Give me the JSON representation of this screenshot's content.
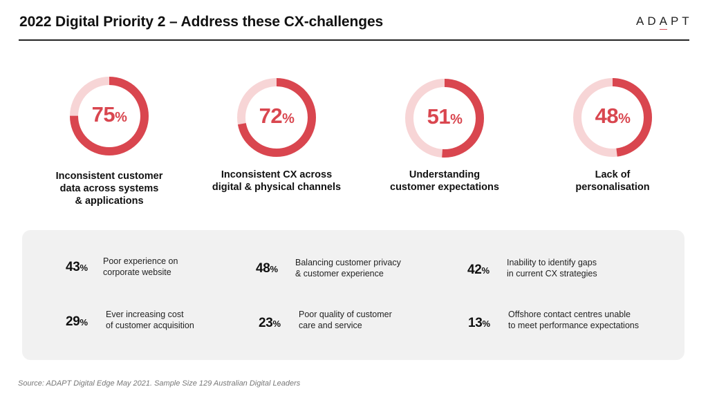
{
  "header": {
    "title": "2022 Digital Priority 2 – Address these CX-challenges",
    "logo": {
      "prefix": "AD",
      "accent": "A",
      "suffix": "PT"
    }
  },
  "colors": {
    "accent": "#d9464f",
    "ring_track": "#f7d5d6",
    "panel_bg": "#f1f1f1",
    "text": "#111111"
  },
  "chart_data": {
    "type": "pie",
    "subtype": "donut-progress",
    "title": "2022 Digital Priority 2 – Address these CX-challenges",
    "unit": "%",
    "categories": [
      "Inconsistent customer data across systems & applications",
      "Inconsistent CX across digital & physical channels",
      "Understanding customer expectations",
      "Lack of personalisation"
    ],
    "values": [
      75,
      72,
      51,
      48
    ],
    "secondary": {
      "type": "table",
      "categories": [
        "Poor experience on corporate website",
        "Balancing customer privacy & customer experience",
        "Inability to identify gaps in current CX strategies",
        "Ever increasing cost of customer acquisition",
        "Poor quality of customer care and service",
        "Offshore contact centres unable to meet performance expectations"
      ],
      "values": [
        43,
        48,
        42,
        29,
        23,
        13
      ]
    }
  },
  "rings": [
    {
      "value": 75,
      "number": "75",
      "pct": "%",
      "label_lines": [
        "Inconsistent customer",
        "data across systems",
        "& applications"
      ]
    },
    {
      "value": 72,
      "number": "72",
      "pct": "%",
      "label_lines": [
        "Inconsistent CX across",
        "digital & physical channels"
      ]
    },
    {
      "value": 51,
      "number": "51",
      "pct": "%",
      "label_lines": [
        "Understanding",
        "customer expectations"
      ]
    },
    {
      "value": 48,
      "number": "48",
      "pct": "%",
      "label_lines": [
        "Lack of",
        "personalisation"
      ]
    }
  ],
  "stats": [
    {
      "number": "43",
      "pct": "%",
      "lines": [
        "Poor experience on",
        "corporate website"
      ]
    },
    {
      "number": "48",
      "pct": "%",
      "lines": [
        "Balancing customer privacy",
        "& customer experience"
      ]
    },
    {
      "number": "42",
      "pct": "%",
      "lines": [
        "Inability to identify gaps",
        "in current CX strategies"
      ]
    },
    {
      "number": "29",
      "pct": "%",
      "lines": [
        "Ever increasing cost",
        "of customer acquisition"
      ]
    },
    {
      "number": "23",
      "pct": "%",
      "lines": [
        "Poor quality of customer",
        "care and service"
      ]
    },
    {
      "number": "13",
      "pct": "%",
      "lines": [
        "Offshore contact centres unable",
        "to meet performance expectations"
      ]
    }
  ],
  "footer": {
    "source": "Source: ADAPT Digital Edge May 2021. Sample Size 129 Australian Digital Leaders"
  }
}
